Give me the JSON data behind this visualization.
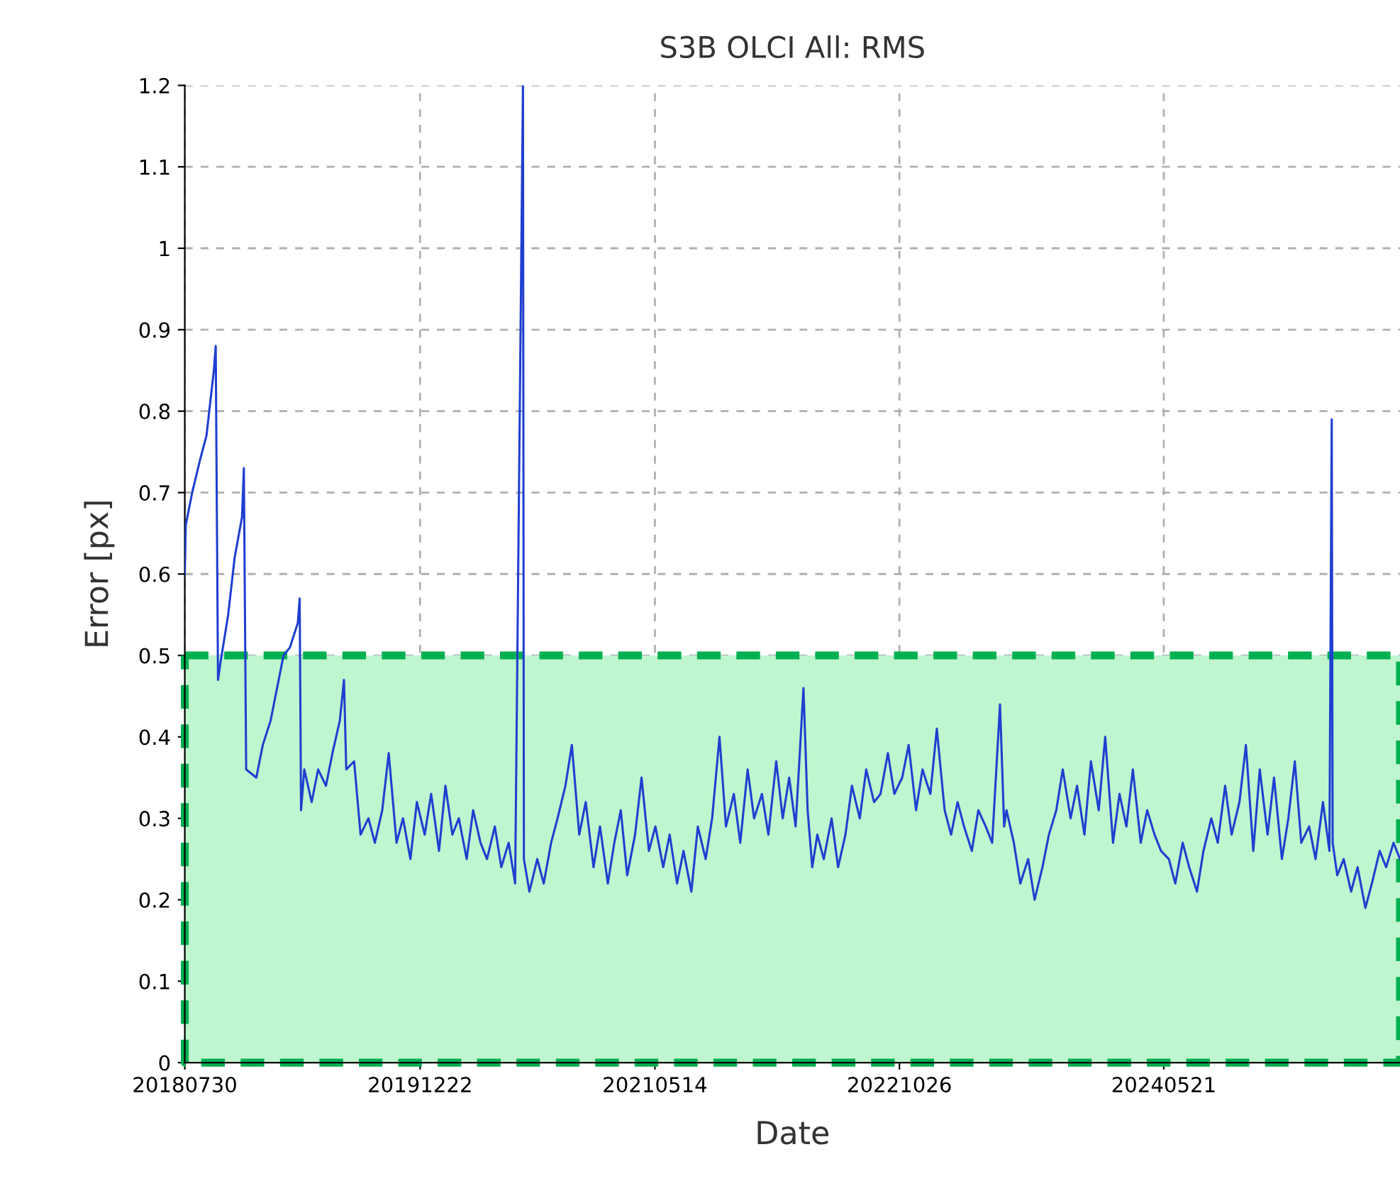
{
  "chart_data": {
    "type": "line",
    "title": "S3B OLCI All: RMS",
    "xlabel": "Date",
    "ylabel": "Error [px]",
    "x": [
      "2018-07-30",
      "2018-08-01",
      "2018-08-15",
      "2018-09-01",
      "2018-09-15",
      "2018-10-01",
      "2018-10-05",
      "2018-10-10",
      "2018-10-15",
      "2018-11-01",
      "2018-11-15",
      "2018-12-01",
      "2018-12-05",
      "2018-12-10",
      "2019-01-01",
      "2019-01-15",
      "2019-02-01",
      "2019-02-15",
      "2019-03-01",
      "2019-03-15",
      "2019-04-01",
      "2019-04-05",
      "2019-04-08",
      "2019-04-15",
      "2019-05-01",
      "2019-05-15",
      "2019-06-01",
      "2019-06-15",
      "2019-07-01",
      "2019-07-10",
      "2019-07-15",
      "2019-08-01",
      "2019-08-15",
      "2019-09-01",
      "2019-09-15",
      "2019-10-01",
      "2019-10-15",
      "2019-11-01",
      "2019-11-15",
      "2019-12-01",
      "2019-12-15",
      "2020-01-01",
      "2020-01-15",
      "2020-02-01",
      "2020-02-15",
      "2020-03-01",
      "2020-03-15",
      "2020-04-01",
      "2020-04-15",
      "2020-05-01",
      "2020-05-15",
      "2020-06-01",
      "2020-06-15",
      "2020-07-01",
      "2020-07-15",
      "2020-08-01",
      "2020-08-03",
      "2020-08-15",
      "2020-09-01",
      "2020-09-15",
      "2020-10-01",
      "2020-10-15",
      "2020-11-01",
      "2020-11-15",
      "2020-12-01",
      "2020-12-15",
      "2021-01-01",
      "2021-01-15",
      "2021-02-01",
      "2021-02-15",
      "2021-03-01",
      "2021-03-15",
      "2021-04-01",
      "2021-04-15",
      "2021-05-01",
      "2021-05-15",
      "2021-06-01",
      "2021-06-15",
      "2021-07-01",
      "2021-07-15",
      "2021-08-01",
      "2021-08-15",
      "2021-09-01",
      "2021-09-15",
      "2021-10-01",
      "2021-10-15",
      "2021-11-01",
      "2021-11-15",
      "2021-12-01",
      "2021-12-15",
      "2022-01-01",
      "2022-01-15",
      "2022-02-01",
      "2022-02-15",
      "2022-03-01",
      "2022-03-15",
      "2022-04-01",
      "2022-04-10",
      "2022-04-20",
      "2022-05-01",
      "2022-05-15",
      "2022-06-01",
      "2022-06-15",
      "2022-07-01",
      "2022-07-15",
      "2022-08-01",
      "2022-08-15",
      "2022-09-01",
      "2022-09-15",
      "2022-10-01",
      "2022-10-15",
      "2022-11-01",
      "2022-11-15",
      "2022-12-01",
      "2022-12-15",
      "2023-01-01",
      "2023-01-15",
      "2023-02-01",
      "2023-02-15",
      "2023-03-01",
      "2023-03-15",
      "2023-04-01",
      "2023-04-15",
      "2023-05-01",
      "2023-05-15",
      "2023-06-01",
      "2023-06-10",
      "2023-06-15",
      "2023-07-01",
      "2023-07-15",
      "2023-08-01",
      "2023-08-15",
      "2023-09-01",
      "2023-09-15",
      "2023-10-01",
      "2023-10-15",
      "2023-11-01",
      "2023-11-15",
      "2023-12-01",
      "2023-12-15",
      "2024-01-01",
      "2024-01-15",
      "2024-02-01",
      "2024-02-15",
      "2024-03-01",
      "2024-03-15",
      "2024-04-01",
      "2024-04-15",
      "2024-05-01",
      "2024-05-15",
      "2024-06-01",
      "2024-06-15",
      "2024-07-01",
      "2024-07-15",
      "2024-08-01",
      "2024-08-15",
      "2024-09-01",
      "2024-09-15",
      "2024-10-01",
      "2024-10-15",
      "2024-11-01",
      "2024-11-15",
      "2024-12-01",
      "2024-12-15",
      "2025-01-01",
      "2025-01-15",
      "2025-02-01",
      "2025-02-15",
      "2025-03-01",
      "2025-03-15",
      "2025-04-01",
      "2025-04-15",
      "2025-05-01",
      "2025-05-15",
      "2025-05-20",
      "2025-05-22",
      "2025-06-01",
      "2025-06-15",
      "2025-07-01",
      "2025-07-15",
      "2025-08-01",
      "2025-08-15",
      "2025-09-01",
      "2025-09-15",
      "2025-10-01",
      "2025-10-15"
    ],
    "series": [
      {
        "color": "#1f3fd0",
        "values": [
          0.6,
          0.66,
          0.7,
          0.74,
          0.77,
          0.85,
          0.88,
          0.47,
          0.49,
          0.55,
          0.62,
          0.67,
          0.73,
          0.36,
          0.35,
          0.39,
          0.42,
          0.46,
          0.5,
          0.51,
          0.54,
          0.57,
          0.31,
          0.36,
          0.32,
          0.36,
          0.34,
          0.38,
          0.42,
          0.47,
          0.36,
          0.37,
          0.28,
          0.3,
          0.27,
          0.31,
          0.38,
          0.27,
          0.3,
          0.25,
          0.32,
          0.28,
          0.33,
          0.26,
          0.34,
          0.28,
          0.3,
          0.25,
          0.31,
          0.27,
          0.25,
          0.29,
          0.24,
          0.27,
          0.22,
          1.2,
          0.25,
          0.21,
          0.25,
          0.22,
          0.27,
          0.3,
          0.34,
          0.39,
          0.28,
          0.32,
          0.24,
          0.29,
          0.22,
          0.27,
          0.31,
          0.23,
          0.28,
          0.35,
          0.26,
          0.29,
          0.24,
          0.28,
          0.22,
          0.26,
          0.21,
          0.29,
          0.25,
          0.3,
          0.4,
          0.29,
          0.33,
          0.27,
          0.36,
          0.3,
          0.33,
          0.28,
          0.37,
          0.3,
          0.35,
          0.29,
          0.46,
          0.31,
          0.24,
          0.28,
          0.25,
          0.3,
          0.24,
          0.28,
          0.34,
          0.3,
          0.36,
          0.32,
          0.33,
          0.38,
          0.33,
          0.35,
          0.39,
          0.31,
          0.36,
          0.33,
          0.41,
          0.31,
          0.28,
          0.32,
          0.29,
          0.26,
          0.31,
          0.29,
          0.27,
          0.44,
          0.29,
          0.31,
          0.27,
          0.22,
          0.25,
          0.2,
          0.24,
          0.28,
          0.31,
          0.36,
          0.3,
          0.34,
          0.28,
          0.37,
          0.31,
          0.4,
          0.27,
          0.33,
          0.29,
          0.36,
          0.27,
          0.31,
          0.28,
          0.26,
          0.25,
          0.22,
          0.27,
          0.24,
          0.21,
          0.26,
          0.3,
          0.27,
          0.34,
          0.28,
          0.32,
          0.39,
          0.26,
          0.36,
          0.28,
          0.35,
          0.25,
          0.3,
          0.37,
          0.27,
          0.29,
          0.25,
          0.32,
          0.26,
          0.79,
          0.27,
          0.23,
          0.25,
          0.21,
          0.24,
          0.19,
          0.22,
          0.26,
          0.24,
          0.27,
          0.25
        ]
      }
    ],
    "xlim": [
      "2018-07-30",
      "2025-10-15"
    ],
    "xticks": [
      {
        "value": "2018-07-30",
        "label": "20180730"
      },
      {
        "value": "2019-12-22",
        "label": "20191222"
      },
      {
        "value": "2021-05-14",
        "label": "20210514"
      },
      {
        "value": "2022-10-26",
        "label": "20221026"
      },
      {
        "value": "2024-05-21",
        "label": "20240521"
      }
    ],
    "ylim": [
      0,
      1.2
    ],
    "yticks": [
      0,
      0.1,
      0.2,
      0.3,
      0.4,
      0.5,
      0.6,
      0.7,
      0.8,
      0.9,
      1,
      1.1,
      1.2
    ],
    "bands": [
      {
        "axis": "y",
        "from": 0,
        "to": 0.5,
        "color": "#bff5cf"
      }
    ],
    "grid": true
  }
}
